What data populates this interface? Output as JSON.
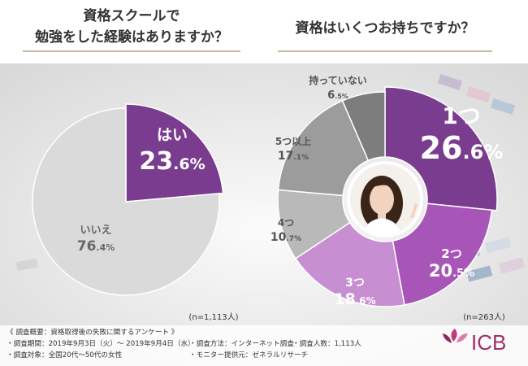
{
  "header": {
    "left_title_line1": "資格スクールで",
    "left_title_line2": "勉強をした経験はありますか？",
    "right_title": "資格はいくつお持ちですか？"
  },
  "chart_data": [
    {
      "type": "pie",
      "title": "資格スクールで勉強をした経験はありますか？",
      "slices": [
        {
          "label": "はい",
          "value": 23.6,
          "color": "#7a3c8e"
        },
        {
          "label": "いいえ",
          "value": 76.4,
          "color": "#dadada"
        }
      ],
      "sample_size": "(n=1,113人)"
    },
    {
      "type": "pie",
      "title": "資格はいくつお持ちですか？",
      "slices": [
        {
          "label": "1つ",
          "value": 26.6,
          "color": "#7a3c8e"
        },
        {
          "label": "2つ",
          "value": 20.5,
          "color": "#a855b8"
        },
        {
          "label": "3つ",
          "value": 18.6,
          "color": "#c78fd2"
        },
        {
          "label": "4つ",
          "value": 10.7,
          "color": "#b9b9b9"
        },
        {
          "label": "5つ以上",
          "value": 17.1,
          "color": "#9c9c9c"
        },
        {
          "label": "持っていない",
          "value": 6.5,
          "color": "#7d7d7d"
        }
      ],
      "sample_size": "(n=263人)"
    }
  ],
  "footer": {
    "heading": "《 調査概要：資格取得後の失敗に関するアンケート 》",
    "period": "・調査期間：2019年9月3日（火）～ 2019年9月4日（水）",
    "target": "・調査対象：全国20代～50代の女性",
    "method": "・調査方法：インターネット調査",
    "count": "・調査人数：1,113人",
    "provider": "・モニター提供元：ゼネラルリサーチ"
  },
  "brand": {
    "name": "ICB",
    "color": "#a02f6b"
  }
}
